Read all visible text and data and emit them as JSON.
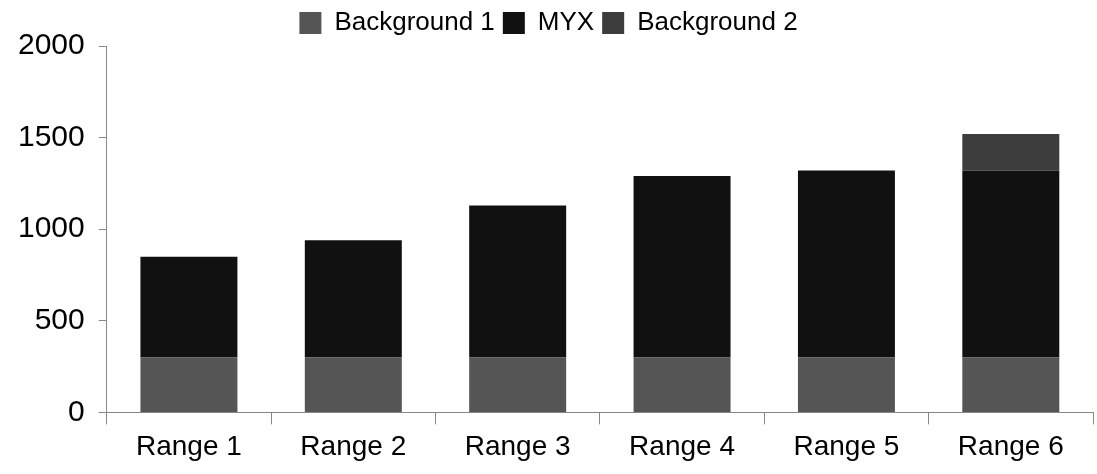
{
  "chart_data": {
    "type": "bar",
    "stacked": true,
    "categories": [
      "Range 1",
      "Range 2",
      "Range 3",
      "Range 4",
      "Range 5",
      "Range 6"
    ],
    "series": [
      {
        "name": "Background 1",
        "color": "#555555",
        "values": [
          300,
          300,
          300,
          300,
          300,
          300
        ]
      },
      {
        "name": "MYX",
        "color": "#111111",
        "values": [
          550,
          640,
          830,
          990,
          1020,
          1020
        ]
      },
      {
        "name": "Background 2",
        "color": "#3d3d3d",
        "values": [
          null,
          null,
          null,
          null,
          null,
          200
        ]
      }
    ],
    "ylim": [
      0,
      2000
    ],
    "yticks": [
      0,
      500,
      1000,
      1500,
      2000
    ],
    "grid": false,
    "legend": "top"
  }
}
